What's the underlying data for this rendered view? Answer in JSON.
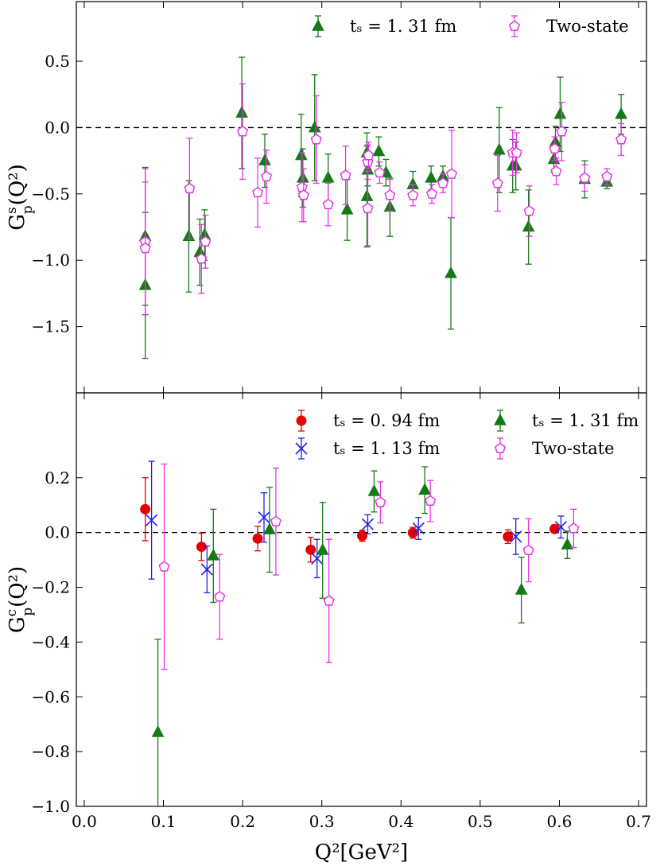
{
  "colors": {
    "red": "#e60000",
    "blue": "#1f1fe6",
    "green": "#157a15",
    "magenta": "#e633e6"
  },
  "chart_data": [
    {
      "panel": "top",
      "type": "scatter",
      "ylabel": "G_p^s(Q^2)",
      "ylabel_main": "G",
      "ylabel_sup": "s",
      "ylabel_sub": "p",
      "ylabel_tail": "(Q²)",
      "xlabel": "",
      "xlim": [
        -0.01,
        0.71
      ],
      "ylim": [
        -2.0,
        0.95
      ],
      "xticks": [
        0.0,
        0.1,
        0.2,
        0.3,
        0.4,
        0.5,
        0.6,
        0.7
      ],
      "yticks": [
        -1.5,
        -1.0,
        -0.5,
        0.0,
        0.5
      ],
      "yticklabels": [
        "−1.5",
        "−1.0",
        "−0.5",
        "0.0",
        "0.5"
      ],
      "reference_line": 0.0,
      "legend": [
        {
          "label": "tₛ = 1. 31 fm",
          "marker": "triangle",
          "color": "green"
        },
        {
          "label": "Two-state",
          "marker": "pentagon",
          "color": "magenta"
        }
      ],
      "series": [
        {
          "name": "tₛ = 1. 31 fm",
          "marker": "triangle",
          "color": "green",
          "points": [
            {
              "x": 0.077,
              "y": -0.82,
              "err": 0.52
            },
            {
              "x": 0.077,
              "y": -1.19,
              "err": 0.55
            },
            {
              "x": 0.132,
              "y": -0.82,
              "err": 0.42
            },
            {
              "x": 0.146,
              "y": -0.94,
              "err": 0.25
            },
            {
              "x": 0.152,
              "y": -0.81,
              "err": 0.19
            },
            {
              "x": 0.199,
              "y": 0.11,
              "err": 0.42
            },
            {
              "x": 0.228,
              "y": -0.25,
              "err": 0.2
            },
            {
              "x": 0.274,
              "y": -0.21,
              "err": 0.31
            },
            {
              "x": 0.276,
              "y": -0.38,
              "err": 0.22
            },
            {
              "x": 0.291,
              "y": -0.001,
              "err": 0.4
            },
            {
              "x": 0.308,
              "y": -0.38,
              "err": 0.18
            },
            {
              "x": 0.332,
              "y": -0.62,
              "err": 0.23
            },
            {
              "x": 0.357,
              "y": -0.19,
              "err": 0.15
            },
            {
              "x": 0.357,
              "y": -0.52,
              "err": 0.38
            },
            {
              "x": 0.358,
              "y": -0.32,
              "err": 0.12
            },
            {
              "x": 0.372,
              "y": -0.18,
              "err": 0.11
            },
            {
              "x": 0.381,
              "y": -0.34,
              "err": 0.1
            },
            {
              "x": 0.386,
              "y": -0.6,
              "err": 0.22
            },
            {
              "x": 0.415,
              "y": -0.43,
              "err": 0.1
            },
            {
              "x": 0.438,
              "y": -0.38,
              "err": 0.09
            },
            {
              "x": 0.453,
              "y": -0.37,
              "err": 0.08
            },
            {
              "x": 0.463,
              "y": -1.1,
              "err": 0.42
            },
            {
              "x": 0.524,
              "y": -0.17,
              "err": 0.32
            },
            {
              "x": 0.541,
              "y": -0.29,
              "err": 0.2
            },
            {
              "x": 0.545,
              "y": -0.29,
              "err": 0.18
            },
            {
              "x": 0.561,
              "y": -0.75,
              "err": 0.28
            },
            {
              "x": 0.593,
              "y": -0.24,
              "err": 0.1
            },
            {
              "x": 0.595,
              "y": -0.11,
              "err": 0.12
            },
            {
              "x": 0.601,
              "y": 0.1,
              "err": 0.28
            },
            {
              "x": 0.632,
              "y": -0.39,
              "err": 0.14
            },
            {
              "x": 0.66,
              "y": -0.41,
              "err": 0.05
            },
            {
              "x": 0.678,
              "y": 0.1,
              "err": 0.15
            }
          ]
        },
        {
          "name": "Two-state",
          "marker": "pentagon",
          "color": "magenta",
          "points": [
            {
              "x": 0.077,
              "y": -0.86,
              "err": 0.55
            },
            {
              "x": 0.077,
              "y": -0.91,
              "err": 0.5
            },
            {
              "x": 0.133,
              "y": -0.46,
              "err": 0.38
            },
            {
              "x": 0.148,
              "y": -0.99,
              "err": 0.26
            },
            {
              "x": 0.153,
              "y": -0.86,
              "err": 0.2
            },
            {
              "x": 0.2,
              "y": -0.03,
              "err": 0.36
            },
            {
              "x": 0.219,
              "y": -0.49,
              "err": 0.26
            },
            {
              "x": 0.23,
              "y": -0.37,
              "err": 0.2
            },
            {
              "x": 0.275,
              "y": -0.45,
              "err": 0.26
            },
            {
              "x": 0.277,
              "y": -0.51,
              "err": 0.2
            },
            {
              "x": 0.293,
              "y": -0.09,
              "err": 0.33
            },
            {
              "x": 0.308,
              "y": -0.58,
              "err": 0.16
            },
            {
              "x": 0.33,
              "y": -0.36,
              "err": 0.22
            },
            {
              "x": 0.358,
              "y": -0.26,
              "err": 0.13
            },
            {
              "x": 0.358,
              "y": -0.61,
              "err": 0.28
            },
            {
              "x": 0.359,
              "y": -0.21,
              "err": 0.1
            },
            {
              "x": 0.373,
              "y": -0.34,
              "err": 0.08
            },
            {
              "x": 0.386,
              "y": -0.51,
              "err": 0.12
            },
            {
              "x": 0.415,
              "y": -0.51,
              "err": 0.08
            },
            {
              "x": 0.439,
              "y": -0.5,
              "err": 0.07
            },
            {
              "x": 0.453,
              "y": -0.42,
              "err": 0.07
            },
            {
              "x": 0.464,
              "y": -0.35,
              "err": 0.33
            },
            {
              "x": 0.522,
              "y": -0.42,
              "err": 0.21
            },
            {
              "x": 0.541,
              "y": -0.19,
              "err": 0.17
            },
            {
              "x": 0.546,
              "y": -0.19,
              "err": 0.15
            },
            {
              "x": 0.562,
              "y": -0.63,
              "err": 0.19
            },
            {
              "x": 0.594,
              "y": -0.16,
              "err": 0.09
            },
            {
              "x": 0.596,
              "y": -0.33,
              "err": 0.1
            },
            {
              "x": 0.603,
              "y": -0.03,
              "err": 0.22
            },
            {
              "x": 0.632,
              "y": -0.38,
              "err": 0.1
            },
            {
              "x": 0.66,
              "y": -0.37,
              "err": 0.06
            },
            {
              "x": 0.678,
              "y": -0.09,
              "err": 0.12
            }
          ]
        }
      ]
    },
    {
      "panel": "bottom",
      "type": "scatter",
      "ylabel": "G_p^c(Q^2)",
      "ylabel_main": "G",
      "ylabel_sup": "c",
      "ylabel_sub": "p",
      "ylabel_tail": "(Q²)",
      "xlabel": "Q²[GeV²]",
      "xlim": [
        -0.01,
        0.71
      ],
      "ylim": [
        -1.0,
        0.51
      ],
      "xticks": [
        0.0,
        0.1,
        0.2,
        0.3,
        0.4,
        0.5,
        0.6,
        0.7
      ],
      "xticklabels": [
        "0.0",
        "0.1",
        "0.2",
        "0.3",
        "0.4",
        "0.5",
        "0.6",
        "0.7"
      ],
      "yticks": [
        -1.0,
        -0.8,
        -0.6,
        -0.4,
        -0.2,
        0.0,
        0.2
      ],
      "yticklabels": [
        "−1.0",
        "−0.8",
        "−0.6",
        "−0.4",
        "−0.2",
        "0.0",
        "0.2"
      ],
      "reference_line": 0.0,
      "legend": [
        {
          "label": "tₛ = 0. 94 fm",
          "marker": "circle",
          "color": "red"
        },
        {
          "label": "tₛ = 1. 31 fm",
          "marker": "triangle",
          "color": "green"
        },
        {
          "label": "tₛ = 1. 13 fm",
          "marker": "x",
          "color": "blue"
        },
        {
          "label": "Two-state",
          "marker": "pentagon",
          "color": "magenta"
        }
      ],
      "series": [
        {
          "name": "tₛ = 0. 94 fm",
          "marker": "circle",
          "color": "red",
          "points": [
            {
              "x": 0.077,
              "y": 0.085,
              "err": 0.115
            },
            {
              "x": 0.148,
              "y": -0.052,
              "err": 0.05
            },
            {
              "x": 0.219,
              "y": -0.022,
              "err": 0.045
            },
            {
              "x": 0.286,
              "y": -0.063,
              "err": 0.045
            },
            {
              "x": 0.351,
              "y": -0.012,
              "err": 0.02
            },
            {
              "x": 0.415,
              "y": -0.001,
              "err": 0.02
            },
            {
              "x": 0.535,
              "y": -0.015,
              "err": 0.025
            },
            {
              "x": 0.594,
              "y": 0.013,
              "err": 0.015
            }
          ]
        },
        {
          "name": "tₛ = 1. 13 fm",
          "marker": "x",
          "color": "blue",
          "points": [
            {
              "x": 0.085,
              "y": 0.045,
              "err": 0.215
            },
            {
              "x": 0.155,
              "y": -0.135,
              "err": 0.085
            },
            {
              "x": 0.227,
              "y": 0.055,
              "err": 0.09
            },
            {
              "x": 0.294,
              "y": -0.095,
              "err": 0.07
            },
            {
              "x": 0.358,
              "y": 0.03,
              "err": 0.035
            },
            {
              "x": 0.422,
              "y": 0.015,
              "err": 0.04
            },
            {
              "x": 0.545,
              "y": -0.015,
              "err": 0.065
            },
            {
              "x": 0.602,
              "y": 0.02,
              "err": 0.04
            }
          ]
        },
        {
          "name": "tₛ = 1. 31 fm",
          "marker": "triangle",
          "color": "green",
          "points": [
            {
              "x": 0.093,
              "y": -0.73,
              "err": 0.34
            },
            {
              "x": 0.163,
              "y": -0.085,
              "err": 0.17
            },
            {
              "x": 0.234,
              "y": 0.01,
              "err": 0.155
            },
            {
              "x": 0.301,
              "y": -0.065,
              "err": 0.175
            },
            {
              "x": 0.366,
              "y": 0.15,
              "err": 0.075
            },
            {
              "x": 0.43,
              "y": 0.155,
              "err": 0.085
            },
            {
              "x": 0.552,
              "y": -0.21,
              "err": 0.12
            },
            {
              "x": 0.61,
              "y": -0.045,
              "err": 0.05
            }
          ]
        },
        {
          "name": "Two-state",
          "marker": "pentagon",
          "color": "magenta",
          "points": [
            {
              "x": 0.101,
              "y": -0.125,
              "err": 0.375
            },
            {
              "x": 0.171,
              "y": -0.235,
              "err": 0.155
            },
            {
              "x": 0.242,
              "y": 0.04,
              "err": 0.195
            },
            {
              "x": 0.309,
              "y": -0.25,
              "err": 0.225
            },
            {
              "x": 0.374,
              "y": 0.11,
              "err": 0.075
            },
            {
              "x": 0.437,
              "y": 0.115,
              "err": 0.075
            },
            {
              "x": 0.561,
              "y": -0.065,
              "err": 0.115
            },
            {
              "x": 0.618,
              "y": 0.015,
              "err": 0.07
            }
          ]
        }
      ]
    }
  ]
}
